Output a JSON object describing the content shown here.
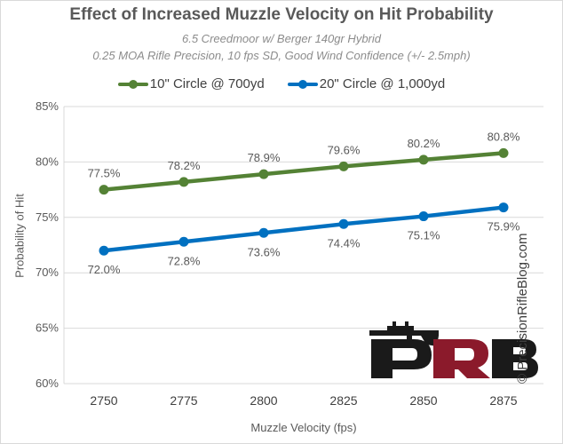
{
  "chart_data": {
    "type": "line",
    "title": "Effect of Increased Muzzle Velocity on Hit Probability",
    "subtitle_1": "6.5 Creedmoor w/ Berger 140gr Hybrid",
    "subtitle_2": "0.25 MOA Rifle Precision, 10 fps SD, Good Wind Confidence (+/- 2.5mph)",
    "xlabel": "Muzzle Velocity (fps)",
    "ylabel": "Probability of Hit",
    "x": [
      2750,
      2775,
      2800,
      2825,
      2850,
      2875
    ],
    "x_tick_labels": [
      "2750",
      "2775",
      "2800",
      "2825",
      "2850",
      "2875"
    ],
    "ylim": [
      60,
      85
    ],
    "y_tick_labels": [
      "60%",
      "65%",
      "70%",
      "75%",
      "80%",
      "85%"
    ],
    "y_ticks": [
      60,
      65,
      70,
      75,
      80,
      85
    ],
    "grid": true,
    "legend_position": "top",
    "series": [
      {
        "name": "10\" Circle @ 700yd",
        "color": "#548235",
        "values": [
          77.5,
          78.2,
          78.9,
          79.6,
          80.2,
          80.8
        ],
        "labels": [
          "77.5%",
          "78.2%",
          "78.9%",
          "79.6%",
          "80.2%",
          "80.8%"
        ],
        "label_position": "above"
      },
      {
        "name": "20\" Circle @ 1,000yd",
        "color": "#0070c0",
        "values": [
          72.0,
          72.8,
          73.6,
          74.4,
          75.1,
          75.9
        ],
        "labels": [
          "72.0%",
          "72.8%",
          "73.6%",
          "74.4%",
          "75.1%",
          "75.9%"
        ],
        "label_position": "below"
      }
    ]
  },
  "logo": {
    "letters": "PRB",
    "watermark": "© PrecisionRifleBlog.com"
  }
}
